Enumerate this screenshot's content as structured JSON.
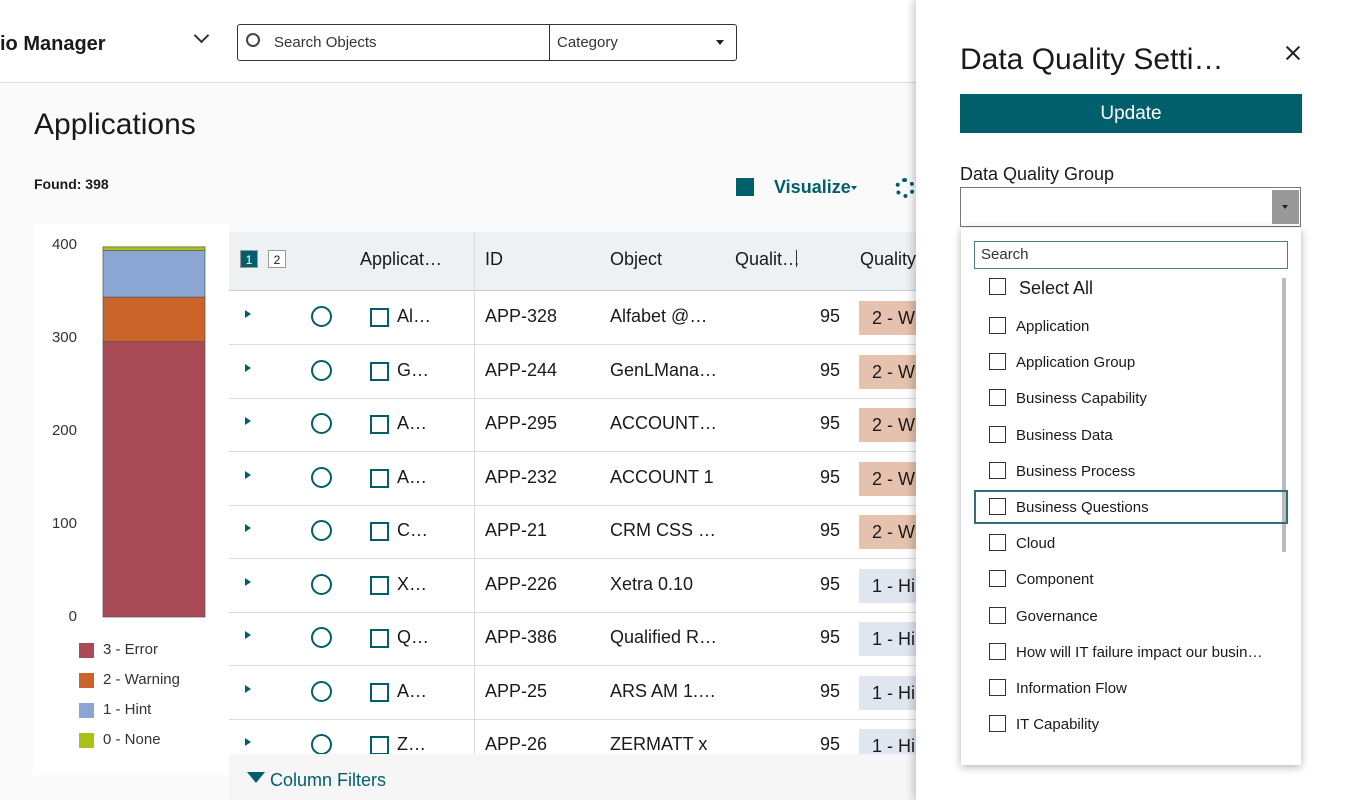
{
  "header": {
    "app_title": "io Manager",
    "search_placeholder": "Search Objects",
    "category": "Category"
  },
  "main": {
    "title": "Applications",
    "found": "Found: 398",
    "visualize": "Visualize",
    "page_buttons": [
      "1",
      "2"
    ],
    "column_filters": "Column Filters"
  },
  "table": {
    "columns": [
      "Applicat…",
      "ID",
      "Object",
      "Qualit…",
      "Quality"
    ],
    "rows": [
      [
        "Al…",
        "APP-328",
        "Alfabet @…",
        95,
        "2 - W"
      ],
      [
        "G…",
        "APP-244",
        "GenLMana…",
        95,
        "2 - W"
      ],
      [
        "A…",
        "APP-295",
        "ACCOUNT…",
        95,
        "2 - W"
      ],
      [
        "A…",
        "APP-232",
        "ACCOUNT 1",
        95,
        "2 - W"
      ],
      [
        "C…",
        "APP-21",
        "CRM CSS …",
        95,
        "2 - W"
      ],
      [
        "X…",
        "APP-226",
        "Xetra 0.10",
        95,
        "1 - Hi"
      ],
      [
        "Q…",
        "APP-386",
        "Qualified R…",
        95,
        "1 - Hi"
      ],
      [
        "A…",
        "APP-25",
        "ARS AM 1.…",
        95,
        "1 - Hi"
      ],
      [
        "Z…",
        "APP-26",
        "ZERMATT x",
        95,
        "1 - Hi"
      ]
    ]
  },
  "chart_data": {
    "type": "bar",
    "stacked": true,
    "categories": [
      null
    ],
    "series": [
      {
        "name": "3 - Error",
        "color": "#a94b56",
        "values": [
          296
        ]
      },
      {
        "name": "2 - Warning",
        "color": "#c9652b",
        "values": [
          48
        ]
      },
      {
        "name": "1 - Hint",
        "color": "#8ba6d3",
        "values": [
          50
        ]
      },
      {
        "name": "0 - None",
        "color": "#a9c11a",
        "values": [
          4
        ]
      }
    ],
    "ylim": [
      0,
      400
    ],
    "yticks": [
      0,
      100,
      200,
      300,
      400
    ]
  },
  "panel": {
    "title": "Data Quality Setti…",
    "update": "Update",
    "group_label": "Data Quality Group",
    "search_placeholder": "Search",
    "select_all": "Select All",
    "items": [
      "Application",
      "Application Group",
      "Business Capability",
      "Business Data",
      "Business Process",
      "Business Questions",
      "Cloud",
      "Component",
      "Governance",
      "How will IT failure impact our busin…",
      "Information Flow",
      "IT Capability"
    ]
  }
}
